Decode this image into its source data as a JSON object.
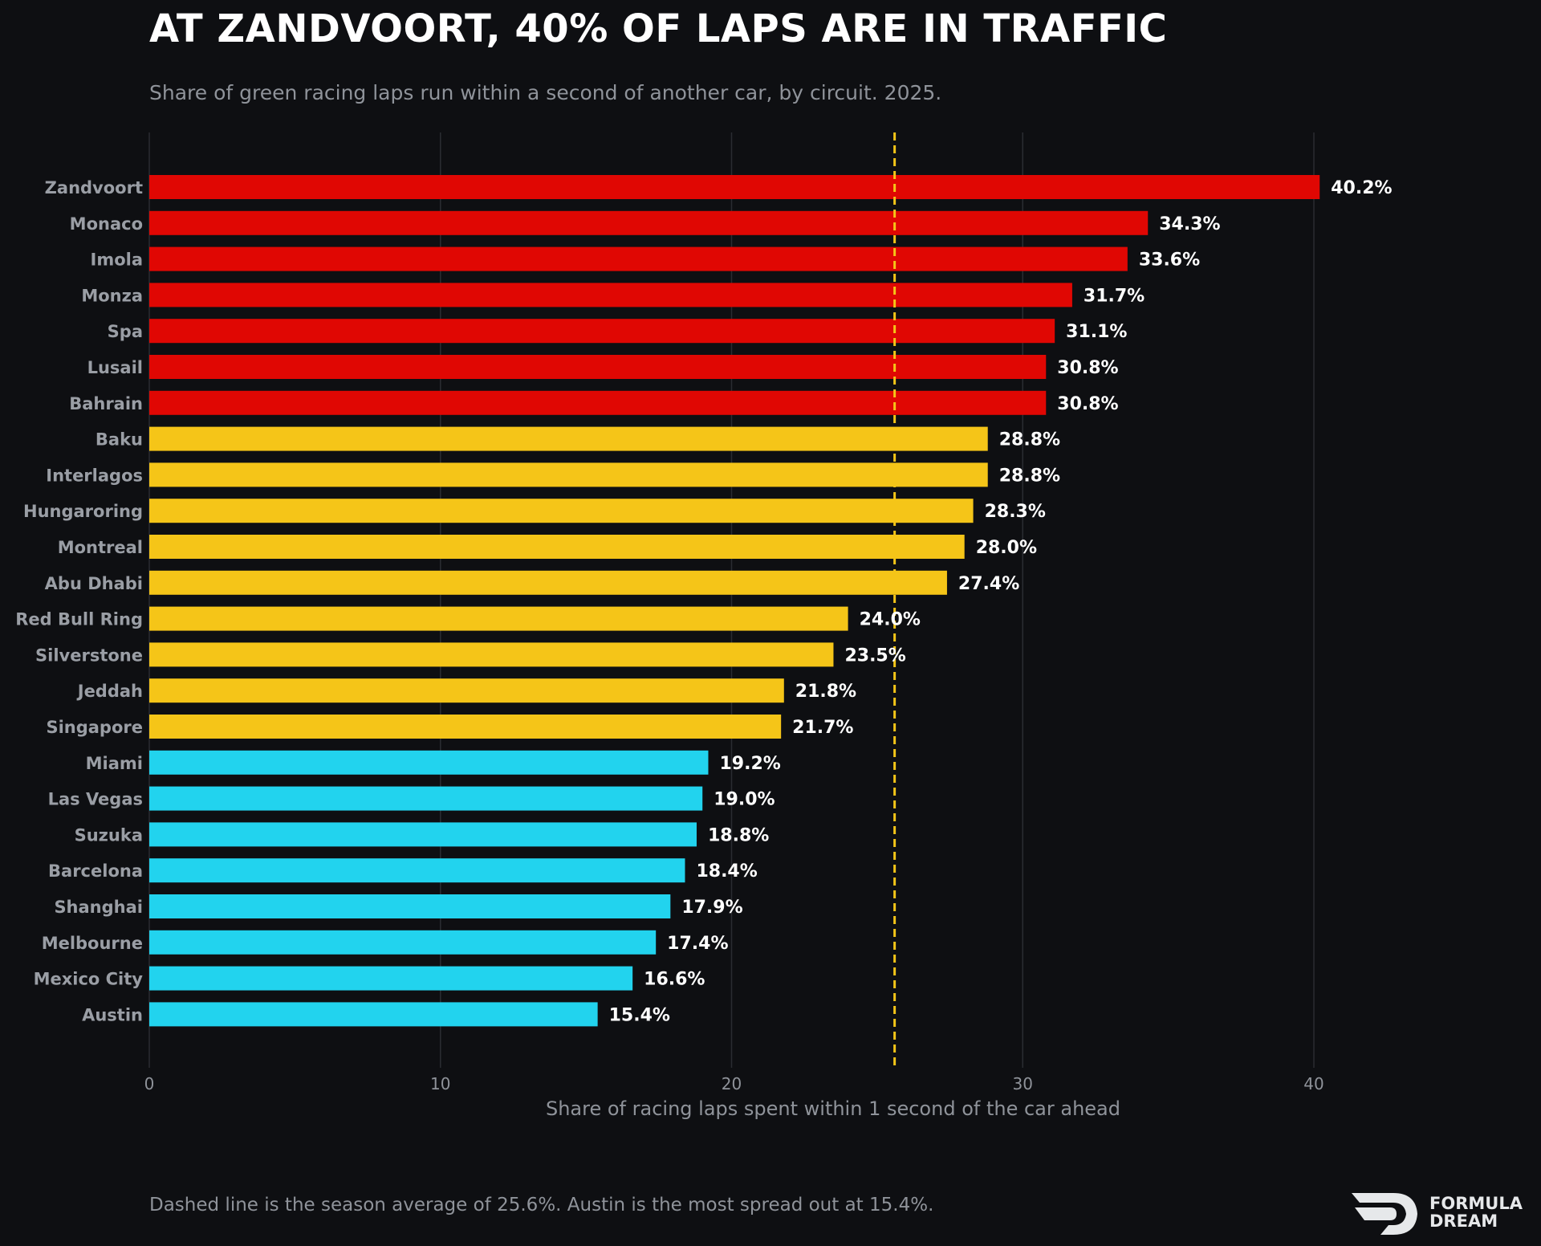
{
  "header": {
    "title": "AT ZANDVOORT, 40% OF LAPS ARE IN TRAFFIC",
    "subtitle": "Share of green racing laps run within a second of another car, by circuit. 2025."
  },
  "footer": {
    "note": "Dashed line is the season average of 25.6%. Austin is the most spread out at 15.4%.",
    "brand_line1": "FORMULA",
    "brand_line2": "DREAM"
  },
  "colors": {
    "background": "#0e0f12",
    "high": "#e00703",
    "mid": "#f5c518",
    "low": "#22d3ee",
    "average_line": "#f5c518",
    "grid": "#2a2c31",
    "label_text": "#9a9ea5",
    "value_text": "#ffffff"
  },
  "chart_data": {
    "type": "bar",
    "orientation": "horizontal",
    "title": "AT ZANDVOORT, 40% OF LAPS ARE IN TRAFFIC",
    "subtitle": "Share of green racing laps run within a second of another car, by circuit. 2025.",
    "xlabel": "Share of racing laps spent within 1 second of the car ahead",
    "ylabel": "",
    "xlim": [
      0,
      45
    ],
    "xticks": [
      0,
      10,
      20,
      30,
      40
    ],
    "grid": true,
    "value_suffix": "%",
    "reference_line": {
      "value": 25.6,
      "style": "dashed"
    },
    "categories": [
      "Zandvoort",
      "Monaco",
      "Imola",
      "Monza",
      "Spa",
      "Lusail",
      "Bahrain",
      "Baku",
      "Interlagos",
      "Hungaroring",
      "Montreal",
      "Abu Dhabi",
      "Red Bull Ring",
      "Silverstone",
      "Jeddah",
      "Singapore",
      "Miami",
      "Las Vegas",
      "Suzuka",
      "Barcelona",
      "Shanghai",
      "Melbourne",
      "Mexico City",
      "Austin"
    ],
    "values": [
      40.2,
      34.3,
      33.6,
      31.7,
      31.1,
      30.8,
      30.8,
      28.8,
      28.8,
      28.3,
      28.0,
      27.4,
      24.0,
      23.5,
      21.8,
      21.7,
      19.2,
      19.0,
      18.8,
      18.4,
      17.9,
      17.4,
      16.6,
      15.4
    ],
    "value_labels": [
      "40.2%",
      "34.3%",
      "33.6%",
      "31.7%",
      "31.1%",
      "30.8%",
      "30.8%",
      "28.8%",
      "28.8%",
      "28.3%",
      "28.0%",
      "27.4%",
      "24.0%",
      "23.5%",
      "21.8%",
      "21.7%",
      "19.2%",
      "19.0%",
      "18.8%",
      "18.4%",
      "17.9%",
      "17.4%",
      "16.6%",
      "15.4%"
    ],
    "tiers": [
      "high",
      "high",
      "high",
      "high",
      "high",
      "high",
      "high",
      "mid",
      "mid",
      "mid",
      "mid",
      "mid",
      "mid",
      "mid",
      "mid",
      "mid",
      "low",
      "low",
      "low",
      "low",
      "low",
      "low",
      "low",
      "low"
    ]
  }
}
